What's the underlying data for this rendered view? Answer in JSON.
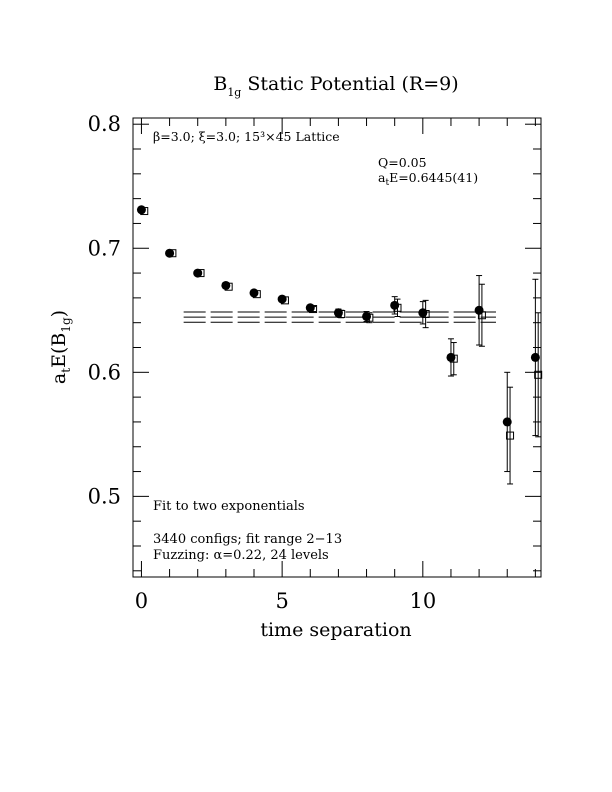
{
  "chart_data": {
    "type": "scatter",
    "title_main": "B",
    "title_sub": "1g",
    "title_rest": " Static Potential (R=9)",
    "ylabel_a": "a",
    "ylabel_t": "t",
    "ylabel_E": "E(B",
    "ylabel_sub": "1g",
    "ylabel_close": ")",
    "xlabel": "time separation",
    "xlim": [
      -0.3,
      14.2
    ],
    "ylim": [
      0.435,
      0.805
    ],
    "xticks": [
      0,
      5,
      10
    ],
    "xtick_labels": [
      "0",
      "5",
      "10"
    ],
    "yticks": [
      0.5,
      0.6,
      0.7,
      0.8
    ],
    "ytick_labels": [
      "0.5",
      "0.6",
      "0.7",
      "0.8"
    ],
    "annotations": {
      "lattice": "β=3.0; ξ=3.0; 15³×45 Lattice",
      "q": "Q=0.05",
      "energy_pre": "a",
      "energy_sub": "t",
      "energy_post": "E=0.6445(41)",
      "fit": "Fit to two exponentials",
      "configs": "3440 configs; fit range 2−13",
      "fuzzing": "Fuzzing: α=0.22, 24 levels"
    },
    "fit": {
      "value": 0.6445,
      "error": 0.0041,
      "x_range": [
        1.5,
        12.6
      ]
    },
    "series": [
      {
        "marker": "filled-circle",
        "x": [
          0,
          1,
          2,
          3,
          4,
          5,
          6,
          7,
          8,
          9,
          10,
          11,
          12,
          13,
          14
        ],
        "y": [
          0.731,
          0.696,
          0.68,
          0.67,
          0.664,
          0.659,
          0.652,
          0.648,
          0.645,
          0.654,
          0.648,
          0.612,
          0.65,
          0.56,
          0.612
        ],
        "err": [
          0.001,
          0.001,
          0.001,
          0.001,
          0.001,
          0.001,
          0.002,
          0.003,
          0.004,
          0.007,
          0.009,
          0.015,
          0.028,
          0.04,
          0.063
        ]
      },
      {
        "marker": "open-square",
        "x": [
          0.1,
          1.1,
          2.1,
          3.1,
          4.1,
          5.1,
          6.1,
          7.1,
          8.1,
          9.1,
          10.1,
          11.1,
          12.1,
          13.1,
          14.1
        ],
        "y": [
          0.73,
          0.696,
          0.68,
          0.669,
          0.663,
          0.658,
          0.651,
          0.647,
          0.644,
          0.652,
          0.647,
          0.611,
          0.646,
          0.549,
          0.598
        ],
        "err": [
          0.001,
          0.001,
          0.001,
          0.001,
          0.001,
          0.001,
          0.002,
          0.003,
          0.004,
          0.007,
          0.011,
          0.013,
          0.025,
          0.039,
          0.05
        ]
      }
    ]
  }
}
